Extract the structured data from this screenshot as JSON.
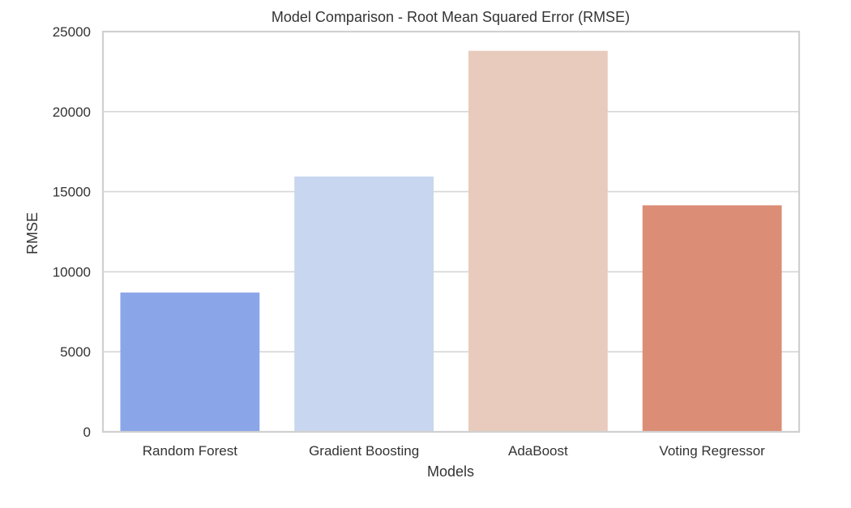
{
  "chart_data": {
    "type": "bar",
    "title": "Model Comparison - Root Mean Squared Error (RMSE)",
    "xlabel": "Models",
    "ylabel": "RMSE",
    "categories": [
      "Random Forest",
      "Gradient Boosting",
      "AdaBoost",
      "Voting Regressor"
    ],
    "values": [
      8700,
      15950,
      23800,
      14150
    ],
    "ylim": [
      0,
      25000
    ],
    "yticks": [
      "0",
      "5000",
      "10000",
      "15000",
      "20000",
      "25000"
    ],
    "grid": "horizontal",
    "bar_colors": [
      "#8aa5e8",
      "#c8d6ef",
      "#e8cbbd",
      "#dc8d75"
    ],
    "grid_color": "#d6d6d6",
    "frame_color": "#d0d0d0"
  }
}
